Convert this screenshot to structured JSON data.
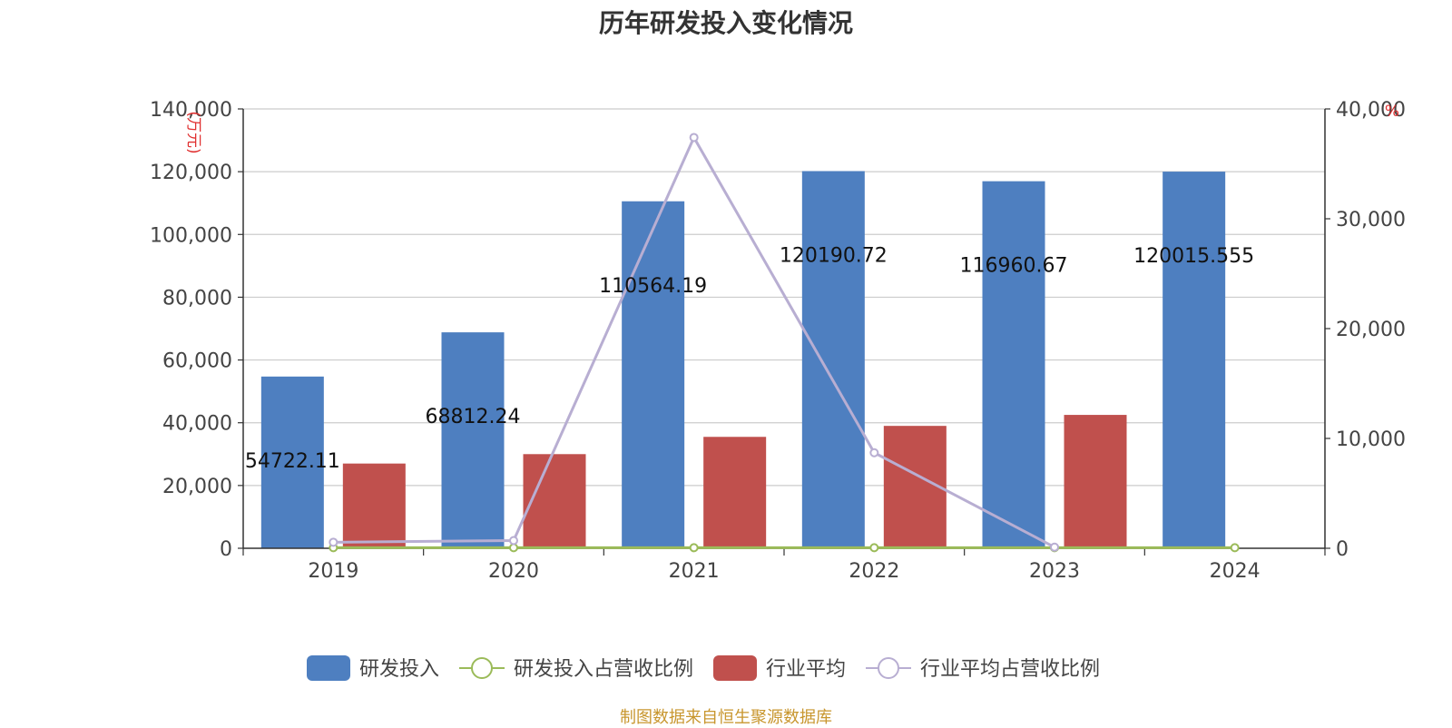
{
  "chart_data": {
    "type": "bar",
    "title": "历年研发投入变化情况",
    "categories": [
      "2019",
      "2020",
      "2021",
      "2022",
      "2023",
      "2024"
    ],
    "left_axis": {
      "label": "(万元)",
      "ylim": [
        0,
        140000
      ],
      "ticks": [
        "0",
        "20,000",
        "40,000",
        "60,000",
        "80,000",
        "100,000",
        "120,000",
        "140,000"
      ]
    },
    "right_axis": {
      "label": "%",
      "ylim": [
        0,
        40000
      ],
      "ticks": [
        "0",
        "10,000",
        "20,000",
        "30,000",
        "40,000"
      ]
    },
    "series": [
      {
        "name": "研发投入",
        "kind": "bar",
        "axis": "left",
        "color": "#4e7fc0",
        "values": [
          54722.11,
          68812.24,
          110564.19,
          120190.72,
          116960.67,
          120015.555
        ],
        "labels": [
          "54722.11",
          "68812.24",
          "110564.19",
          "120190.72",
          "116960.67",
          "120015.555"
        ]
      },
      {
        "name": "研发投入占营收比例",
        "kind": "line",
        "axis": "right",
        "color": "#9bbb59",
        "values": [
          50,
          50,
          50,
          50,
          50,
          50
        ]
      },
      {
        "name": "行业平均",
        "kind": "bar",
        "axis": "left",
        "color": "#c0504d",
        "values": [
          27000,
          30000,
          35500,
          39000,
          42500,
          null
        ]
      },
      {
        "name": "行业平均占营收比例",
        "kind": "line",
        "axis": "right",
        "color": "#b8aed2",
        "values": [
          550,
          700,
          37400,
          8700,
          100,
          null
        ]
      }
    ],
    "grid": true,
    "legend_position": "bottom"
  },
  "footer_note": "制图数据来自恒生聚源数据库"
}
